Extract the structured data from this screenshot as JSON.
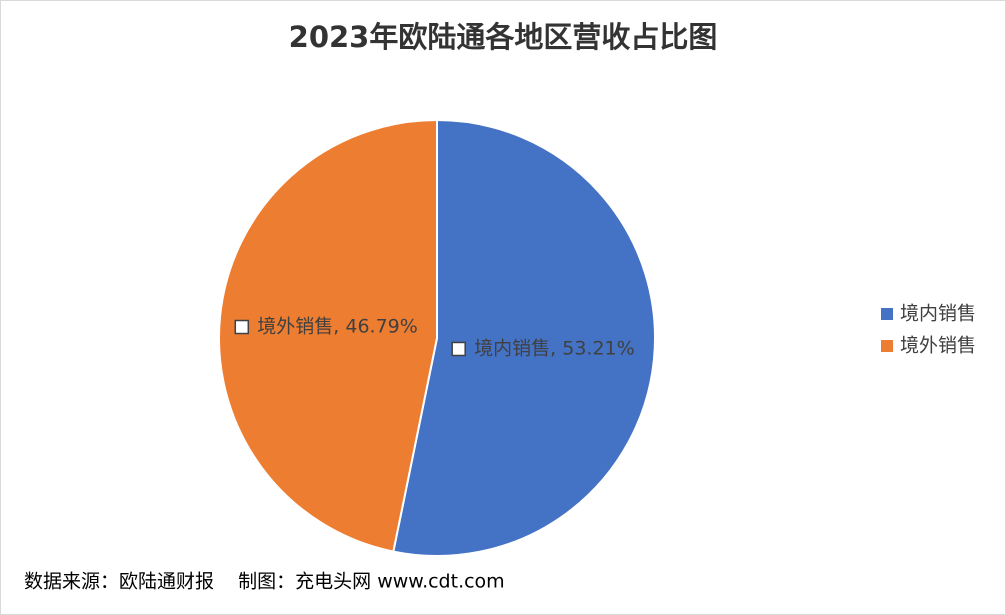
{
  "chart_data": {
    "type": "pie",
    "title": "2023年欧陆通各地区营收占比图",
    "categories": [
      "境内销售",
      "境外销售"
    ],
    "values": [
      53.21,
      46.79
    ],
    "value_labels": [
      "境内销售, 53.21%",
      "境外销售, 46.79%"
    ],
    "colors": [
      "#4472c4",
      "#ed7d31"
    ],
    "legend": "right",
    "source": "数据来源：欧陆通财报    制图：充电头网 www.cdt.com"
  }
}
